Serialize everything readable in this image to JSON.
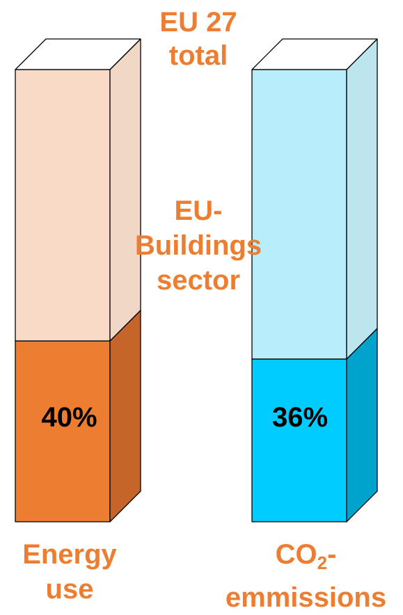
{
  "colors": {
    "label_orange": "#ED7D31",
    "energy_front": "#ED7D31",
    "energy_side": "#C5652A",
    "energy_top": "#EE975A",
    "energy_total_front": "#F9DAC6",
    "energy_total_side": "#F0D7C6",
    "co2_front": "#00CCFF",
    "co2_side": "#00A3CC",
    "co2_top": "#22D4FF",
    "co2_total_front": "#B8EEFB",
    "co2_total_side": "#BCE5F0"
  },
  "labels": {
    "total": [
      "EU 27",
      "total"
    ],
    "sector": [
      "EU-",
      "Buildings",
      "sector"
    ],
    "energy": [
      "Energy",
      "use"
    ],
    "co2_main": "CO",
    "co2_sub": "2",
    "co2_suffix": "-",
    "co2_second": "emmissions"
  },
  "chart_data": {
    "type": "bar",
    "categories": [
      "Energy use",
      "CO2-emmissions"
    ],
    "ylim": [
      0,
      100
    ],
    "series": [
      {
        "name": "EU-Buildings sector",
        "values": [
          40,
          36
        ]
      },
      {
        "name": "EU 27 total",
        "values": [
          100,
          100
        ]
      }
    ],
    "data_labels": [
      "40%",
      "36%"
    ]
  }
}
